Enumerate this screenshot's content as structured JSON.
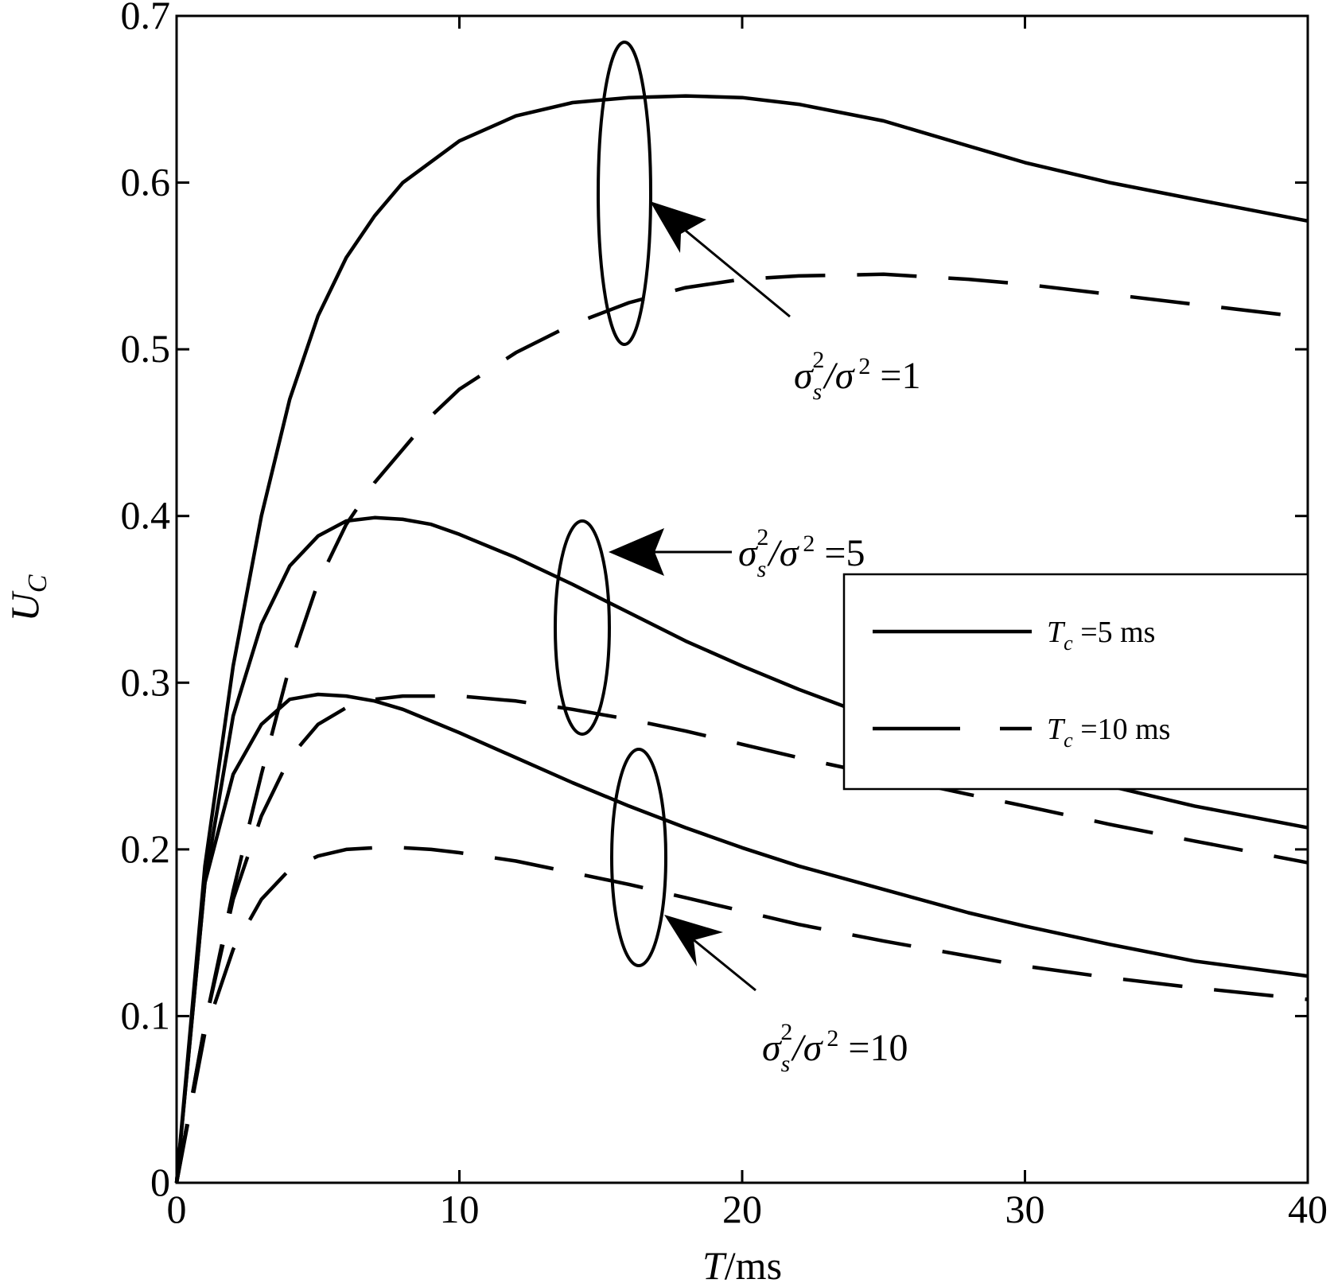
{
  "chart_data": {
    "type": "line",
    "xlabel": {
      "italic": "T",
      "rest": "/ms"
    },
    "ylabel": {
      "main": "U",
      "sub": "C"
    },
    "xlim": [
      0,
      40
    ],
    "ylim": [
      0,
      0.7
    ],
    "xticks": [
      0,
      10,
      20,
      30,
      40
    ],
    "xtick_labels": [
      "0",
      "10",
      "20",
      "30",
      "40"
    ],
    "yticks": [
      0,
      0.1,
      0.2,
      0.3,
      0.4,
      0.5,
      0.6,
      0.7
    ],
    "ytick_labels": [
      "0",
      "0.1",
      "0.2",
      "0.3",
      "0.4",
      "0.5",
      "0.6",
      "0.7"
    ],
    "grid": false,
    "legend": {
      "placement": "right",
      "entries": [
        {
          "style": "solid",
          "main": "T",
          "sub": "c",
          "rest": " =5 ms"
        },
        {
          "style": "dashed",
          "main": "T",
          "sub": "c",
          "rest": " =10 ms"
        }
      ]
    },
    "annotations": [
      {
        "sigma": "σ",
        "sub": "s",
        "sup": "2",
        "slash": "/σ",
        "sup2": "2",
        "value": " =1"
      },
      {
        "sigma": "σ",
        "sub": "s",
        "sup": "2",
        "slash": "/σ",
        "sup2": "2",
        "value": " =5"
      },
      {
        "sigma": "σ",
        "sub": "s",
        "sup": "2",
        "slash": "/σ",
        "sup2": "2",
        "value": " =10"
      }
    ],
    "series": [
      {
        "group": "1",
        "tc": 5,
        "style": "solid",
        "x": [
          0,
          1,
          2,
          3,
          4,
          5,
          6,
          7,
          8,
          10,
          12,
          14,
          16,
          18,
          20,
          22,
          25,
          28,
          30,
          33,
          36,
          40
        ],
        "y": [
          0,
          0.19,
          0.31,
          0.4,
          0.47,
          0.52,
          0.555,
          0.58,
          0.6,
          0.625,
          0.64,
          0.648,
          0.651,
          0.652,
          0.651,
          0.647,
          0.637,
          0.622,
          0.612,
          0.6,
          0.59,
          0.577
        ]
      },
      {
        "group": "1",
        "tc": 10,
        "style": "dashed",
        "x": [
          0,
          1,
          2,
          3,
          4,
          5,
          6,
          7,
          8,
          9,
          10,
          12,
          14,
          16,
          18,
          20,
          22,
          25,
          28,
          30,
          33,
          36,
          40
        ],
        "y": [
          0,
          0.095,
          0.175,
          0.245,
          0.31,
          0.36,
          0.395,
          0.42,
          0.44,
          0.46,
          0.476,
          0.498,
          0.515,
          0.528,
          0.537,
          0.542,
          0.544,
          0.545,
          0.542,
          0.539,
          0.533,
          0.527,
          0.519
        ]
      },
      {
        "group": "5",
        "tc": 5,
        "style": "solid",
        "x": [
          0,
          1,
          2,
          3,
          4,
          5,
          6,
          7,
          8,
          9,
          10,
          12,
          14,
          16,
          18,
          20,
          22,
          25,
          28,
          30,
          33,
          36,
          40
        ],
        "y": [
          0,
          0.18,
          0.28,
          0.335,
          0.37,
          0.388,
          0.397,
          0.399,
          0.398,
          0.395,
          0.389,
          0.375,
          0.359,
          0.342,
          0.325,
          0.31,
          0.296,
          0.277,
          0.262,
          0.252,
          0.238,
          0.226,
          0.213
        ]
      },
      {
        "group": "5",
        "tc": 10,
        "style": "dashed",
        "x": [
          0,
          1,
          2,
          3,
          4,
          5,
          6,
          7,
          8,
          9,
          10,
          12,
          14,
          16,
          18,
          20,
          22,
          25,
          28,
          30,
          33,
          36,
          40
        ],
        "y": [
          0,
          0.095,
          0.17,
          0.22,
          0.255,
          0.275,
          0.285,
          0.29,
          0.292,
          0.292,
          0.292,
          0.289,
          0.284,
          0.278,
          0.271,
          0.263,
          0.255,
          0.244,
          0.233,
          0.226,
          0.215,
          0.205,
          0.192
        ]
      },
      {
        "group": "10",
        "tc": 5,
        "style": "solid",
        "x": [
          0,
          1,
          2,
          3,
          4,
          5,
          6,
          7,
          8,
          9,
          10,
          12,
          14,
          16,
          18,
          20,
          22,
          25,
          28,
          30,
          33,
          36,
          40
        ],
        "y": [
          0,
          0.18,
          0.245,
          0.275,
          0.29,
          0.293,
          0.292,
          0.289,
          0.284,
          0.277,
          0.27,
          0.255,
          0.24,
          0.226,
          0.213,
          0.201,
          0.19,
          0.176,
          0.162,
          0.154,
          0.143,
          0.133,
          0.124
        ]
      },
      {
        "group": "10",
        "tc": 10,
        "style": "dashed",
        "x": [
          0,
          1,
          2,
          3,
          4,
          5,
          6,
          7,
          8,
          9,
          10,
          12,
          14,
          16,
          18,
          20,
          22,
          25,
          28,
          30,
          33,
          36,
          40
        ],
        "y": [
          0,
          0.09,
          0.14,
          0.17,
          0.188,
          0.196,
          0.2,
          0.201,
          0.201,
          0.2,
          0.198,
          0.193,
          0.186,
          0.179,
          0.171,
          0.163,
          0.155,
          0.145,
          0.136,
          0.13,
          0.123,
          0.117,
          0.11
        ]
      }
    ]
  }
}
